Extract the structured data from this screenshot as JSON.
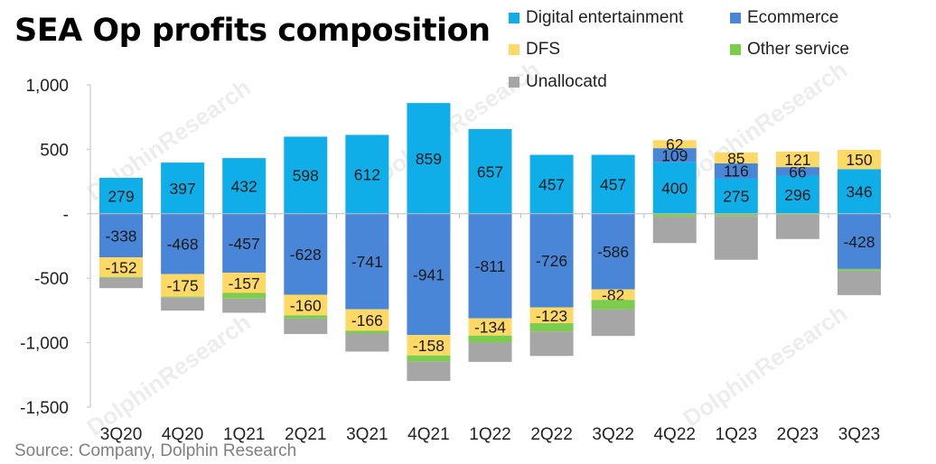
{
  "watermark": "DolphinResearch",
  "source": "Source: Company, Dolphin Research",
  "chart_data": {
    "type": "bar",
    "stacked": true,
    "title": "SEA Op profits composition",
    "xlabel": "",
    "ylabel": "",
    "ylim": [
      -1500,
      1000
    ],
    "yticks": [
      1000,
      500,
      0,
      -500,
      -1000,
      -1500
    ],
    "ytick_labels": [
      "1,000",
      "500",
      "-",
      "-500",
      "-1,000",
      "-1,500"
    ],
    "legend_position": "top-right",
    "categories": [
      "3Q20",
      "4Q20",
      "1Q21",
      "2Q21",
      "3Q21",
      "4Q21",
      "1Q22",
      "2Q22",
      "3Q22",
      "4Q22",
      "1Q23",
      "2Q23",
      "3Q23"
    ],
    "series": [
      {
        "name": "Digital entertainment",
        "color": "#10aee9",
        "values": [
          279,
          397,
          432,
          598,
          612,
          859,
          657,
          457,
          457,
          400,
          275,
          296,
          346
        ],
        "labels": [
          "279",
          "397",
          "432",
          "598",
          "612",
          "859",
          "657",
          "457",
          "457",
          "400",
          "275",
          "296",
          "346"
        ]
      },
      {
        "name": "Ecommerce",
        "color": "#4a86d8",
        "values": [
          -338,
          -468,
          -457,
          -628,
          -741,
          -941,
          -811,
          -726,
          -586,
          109,
          116,
          66,
          -428
        ],
        "labels": [
          "-338",
          "-468",
          "-457",
          "-628",
          "-741",
          "-941",
          "-811",
          "-726",
          "-586",
          "109",
          "116",
          "66",
          "-428"
        ]
      },
      {
        "name": "DFS",
        "color": "#ffd966",
        "values": [
          -152,
          -175,
          -157,
          -160,
          -166,
          -158,
          -134,
          -123,
          -82,
          62,
          85,
          121,
          150
        ],
        "labels": [
          "-152",
          "-175",
          "-157",
          "-160",
          "-166",
          "-158",
          "-134",
          "-123",
          "-82",
          "62",
          "85",
          "121",
          "150"
        ]
      },
      {
        "name": "Other service",
        "color": "#7ccc4e",
        "values": [
          -7,
          -8,
          -44,
          -25,
          -22,
          -48,
          -54,
          -64,
          -75,
          -22,
          -17,
          -8,
          -13
        ],
        "labels": [
          "",
          "",
          "",
          "",
          "",
          "",
          "",
          "",
          "",
          "",
          "",
          "",
          ""
        ]
      },
      {
        "name": "Unallocatd",
        "color": "#a6a6a6",
        "values": [
          -80,
          -100,
          -110,
          -120,
          -140,
          -150,
          -150,
          -190,
          -205,
          -205,
          -340,
          -188,
          -190
        ],
        "labels": [
          "",
          "",
          "",
          "",
          "",
          "",
          "",
          "",
          "",
          "",
          "",
          "",
          ""
        ]
      }
    ]
  }
}
